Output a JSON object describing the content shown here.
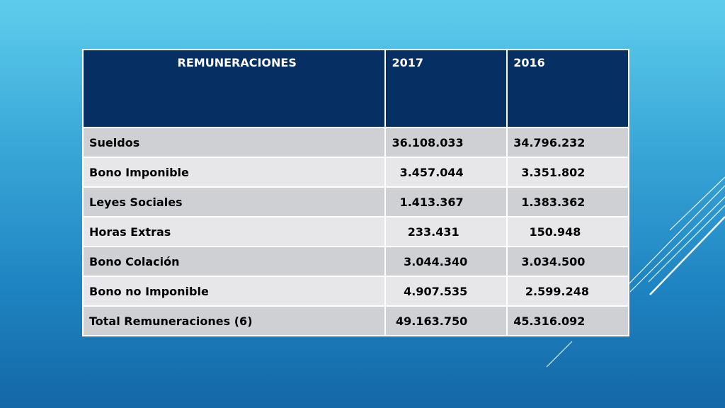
{
  "table": {
    "headers": [
      "REMUNERACIONES",
      "2017",
      "2016"
    ],
    "rows": [
      {
        "label": "Sueldos",
        "v2017": "36.108.033",
        "v2016": "34.796.232"
      },
      {
        "label": "Bono Imponible",
        "v2017": "  3.457.044",
        "v2016": "  3.351.802"
      },
      {
        "label": "Leyes Sociales",
        "v2017": "  1.413.367",
        "v2016": "  1.383.362"
      },
      {
        "label": "Horas Extras",
        "v2017": "    233.431",
        "v2016": "    150.948"
      },
      {
        "label": "Bono Colación",
        "v2017": "   3.044.340",
        "v2016": "  3.034.500"
      },
      {
        "label": "Bono no Imponible",
        "v2017": "   4.907.535",
        "v2016": "   2.599.248"
      },
      {
        "label": "Total Remuneraciones (6)",
        "v2017": " 49.163.750",
        "v2016": "45.316.092"
      }
    ]
  },
  "colors": {
    "header_bg": "#062f63",
    "row_dark": "#cfd0d4",
    "row_light": "#e7e7ea",
    "background_top": "#5ecdec",
    "background_bottom": "#1467a6"
  }
}
